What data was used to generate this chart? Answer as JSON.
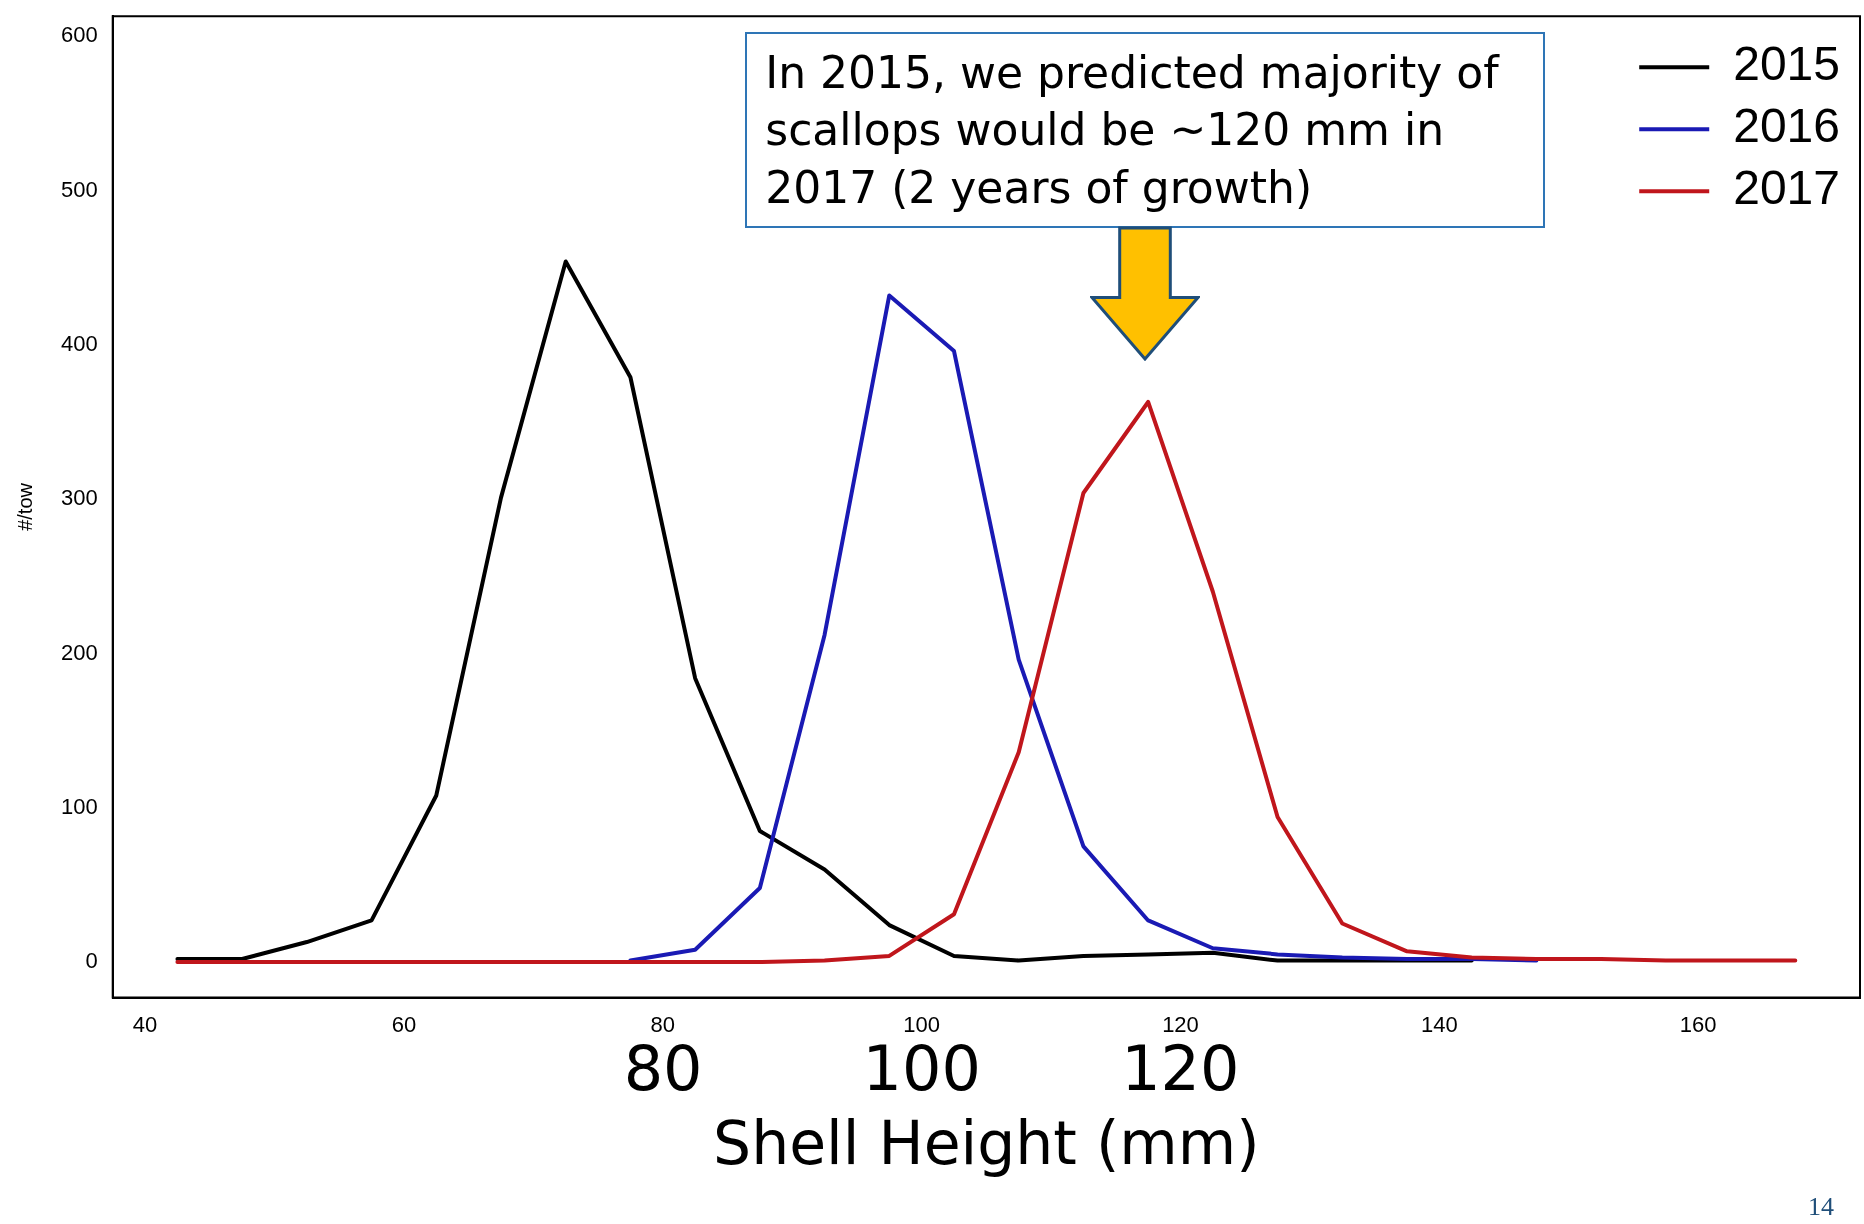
{
  "chart_data": {
    "type": "line",
    "xlabel": "Shell Height (mm)",
    "ylabel": "#/tow",
    "x": [
      42.5,
      47.5,
      52.5,
      57.5,
      62.5,
      67.5,
      72.5,
      77.5,
      82.5,
      87.5,
      92.5,
      97.5,
      102.5,
      107.5,
      112.5,
      117.5,
      122.5,
      127.5,
      132.5,
      137.5,
      142.5,
      147.5,
      152.5,
      157.5,
      162.5,
      167.5
    ],
    "series": [
      {
        "name": "2015",
        "color": "#000000",
        "values": [
          2,
          2,
          13,
          27,
          108,
          301,
          454,
          379,
          184,
          85,
          60,
          24,
          4,
          1,
          4,
          5,
          6,
          1,
          1,
          1,
          1,
          null,
          null,
          null,
          null,
          null
        ]
      },
      {
        "name": "2016",
        "color": "#1a1ab4",
        "values": [
          null,
          null,
          null,
          null,
          null,
          null,
          null,
          1,
          8,
          48,
          212,
          432,
          396,
          196,
          75,
          27,
          9,
          5,
          3,
          2,
          2,
          1,
          null,
          null,
          null,
          null
        ]
      },
      {
        "name": "2017",
        "color": "#c0161c",
        "values": [
          0,
          0,
          0,
          0,
          0,
          0,
          0,
          0,
          0,
          0,
          1,
          4,
          31,
          136,
          304,
          363,
          240,
          94,
          25,
          7,
          3,
          2,
          2,
          1,
          1,
          1
        ]
      }
    ],
    "xlim": [
      37.5,
      172.5
    ],
    "xticks": [
      40,
      60,
      80,
      100,
      120,
      140,
      160
    ],
    "ylim": [
      -23,
      613
    ],
    "yticks": [
      0,
      100,
      200,
      300,
      400,
      500,
      600
    ],
    "grid": false,
    "legend": "top right",
    "marker": "none",
    "line_style": "solid",
    "annotations": [
      "In 2015, we predicted majority of scallops would be ~120 mm in 2017 (2 years of growth)",
      "80",
      "100",
      "120",
      "14"
    ]
  }
}
